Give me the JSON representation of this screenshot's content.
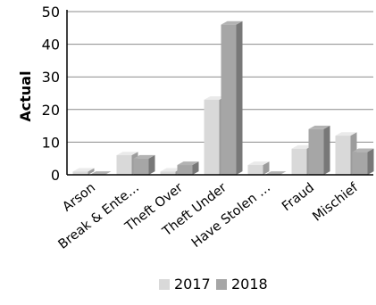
{
  "chart_data": {
    "type": "bar",
    "title": "",
    "xlabel": "",
    "ylabel": "Actual",
    "ylim": [
      0,
      50
    ],
    "yticks": [
      0,
      10,
      20,
      30,
      40,
      50
    ],
    "grid": true,
    "legend_position": "bottom",
    "style": "3d-clustered",
    "categories": [
      "Arson",
      "Break & Ente…",
      "Theft Over",
      "Theft Under",
      "Have Stolen …",
      "Fraud",
      "Mischief"
    ],
    "series": [
      {
        "name": "2017",
        "color": "#d9d9d9",
        "values": [
          1,
          6,
          1,
          23,
          3,
          8,
          12
        ]
      },
      {
        "name": "2018",
        "color": "#a6a6a6",
        "values": [
          0,
          5,
          3,
          46,
          0,
          14,
          7
        ]
      }
    ]
  }
}
